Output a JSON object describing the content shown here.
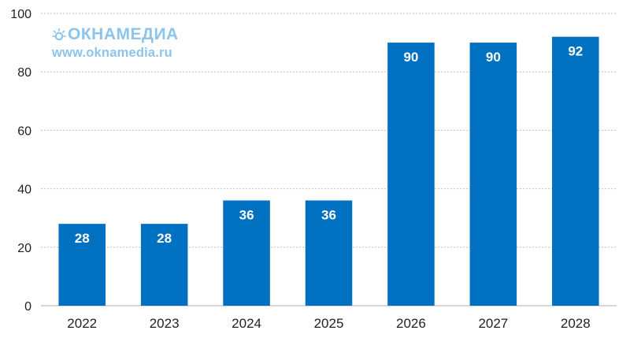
{
  "chart_data": {
    "type": "bar",
    "categories": [
      "2022",
      "2023",
      "2024",
      "2025",
      "2026",
      "2027",
      "2028"
    ],
    "values": [
      28,
      28,
      36,
      36,
      90,
      90,
      92
    ],
    "data_labels": [
      "28",
      "28",
      "36",
      "36",
      "90",
      "90",
      "92"
    ],
    "title": "",
    "xlabel": "",
    "ylabel": "",
    "ylim": [
      0,
      100
    ],
    "yticks": [
      0,
      20,
      40,
      60,
      80,
      100
    ],
    "ytick_labels": [
      "0",
      "20",
      "40",
      "60",
      "80",
      "100"
    ],
    "grid": "horizontal dotted",
    "legend": "none",
    "bar_color": "#0070c0",
    "label_color": "#ffffff"
  },
  "watermark": {
    "brand": "ОКНАМЕДИА",
    "url": "www.oknamedia.ru",
    "color": "#8cc4ec"
  }
}
